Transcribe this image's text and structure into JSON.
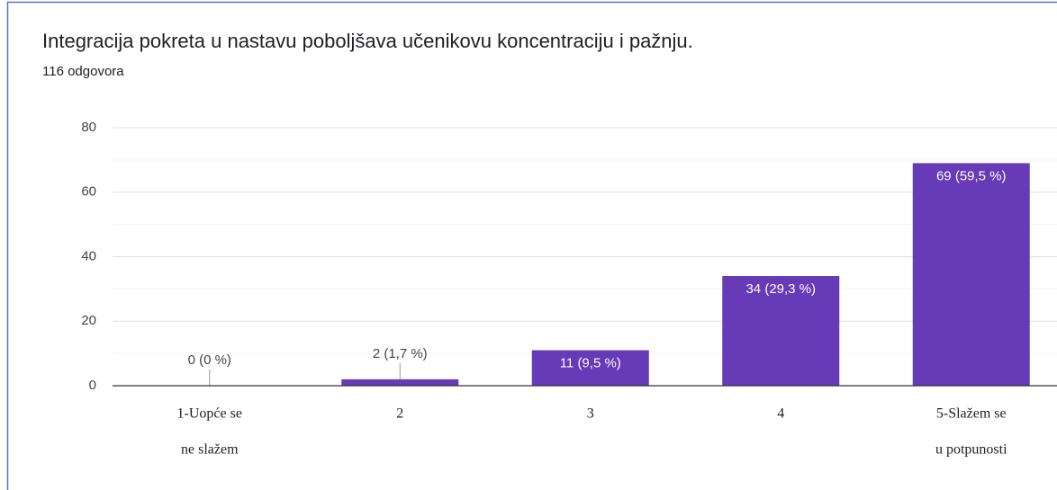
{
  "chart_data": {
    "type": "bar",
    "title": "Integracija pokreta u nastavu poboljšava učenikovu koncentraciju i pažnju.",
    "subtitle": "116 odgovora",
    "categories": [
      [
        "1-Uopće se",
        "ne slažem"
      ],
      [
        "2"
      ],
      [
        "3"
      ],
      [
        "4"
      ],
      [
        "5-Slažem se",
        "u  potpunosti"
      ]
    ],
    "values": [
      0,
      2,
      11,
      34,
      69
    ],
    "value_labels": [
      "0 (0 %)",
      "2 (1,7 %)",
      "11 (9,5 %)",
      "34 (29,3 %)",
      "69 (59,5 %)"
    ],
    "color": "#673ab7",
    "ylim": [
      0,
      80
    ],
    "yticks": [
      0,
      20,
      40,
      60,
      80
    ],
    "yminor": [
      10,
      30,
      50,
      70
    ],
    "grid": true
  }
}
